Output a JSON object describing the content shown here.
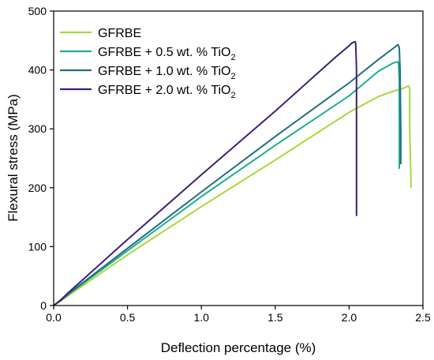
{
  "chart_data": {
    "type": "line",
    "xlabel": "Deflection percentage (%)",
    "ylabel": "Flexural stress (MPa)",
    "xlim": [
      0,
      2.5
    ],
    "ylim": [
      0,
      500
    ],
    "xticks": [
      0,
      0.5,
      1,
      1.5,
      2,
      2.5
    ],
    "xtick_labels": [
      "0.0",
      "0.5",
      "1.0",
      "1.5",
      "2.0",
      "2.5"
    ],
    "yticks": [
      0,
      100,
      200,
      300,
      400,
      500
    ],
    "ytick_labels": [
      "0",
      "100",
      "200",
      "300",
      "400",
      "500"
    ],
    "grid": false,
    "legend_position": "top-left",
    "series": [
      {
        "name": "GFRBE",
        "name_main": "GFRBE",
        "name_sub": "",
        "color": "#a6d93b",
        "x": [
          0,
          0.05,
          0.1,
          0.5,
          1.0,
          1.5,
          2.0,
          2.2,
          2.3,
          2.38,
          2.4,
          2.41,
          2.41,
          2.42
        ],
        "y": [
          0,
          8,
          17,
          86,
          168,
          247,
          328,
          355,
          364,
          370,
          373,
          370,
          300,
          200
        ]
      },
      {
        "name": "GFRBE + 0.5 wt. % TiO2",
        "name_main": "GFRBE + 0.5 wt. % TiO",
        "name_sub": "2",
        "color": "#1fae8e",
        "x": [
          0,
          0.05,
          0.1,
          0.5,
          1.0,
          1.5,
          2.0,
          2.2,
          2.3,
          2.33,
          2.335,
          2.34,
          2.34,
          2.34
        ],
        "y": [
          0,
          9,
          19,
          93,
          185,
          272,
          356,
          398,
          412,
          414,
          410,
          380,
          300,
          232
        ]
      },
      {
        "name": "GFRBE + 1.0 wt. % TiO2",
        "name_main": "GFRBE + 1.0 wt. % TiO",
        "name_sub": "2",
        "color": "#226e80",
        "x": [
          0,
          0.05,
          0.1,
          0.5,
          1.0,
          1.5,
          2.0,
          2.2,
          2.3,
          2.33,
          2.34,
          2.345,
          2.35,
          2.35
        ],
        "y": [
          0,
          9,
          20,
          97,
          193,
          287,
          378,
          418,
          437,
          443,
          438,
          400,
          300,
          240
        ]
      },
      {
        "name": "GFRBE + 2.0 wt. % TiO2",
        "name_main": "GFRBE + 2.0 wt. % TiO",
        "name_sub": "2",
        "color": "#3f1f7a",
        "x": [
          0,
          0.05,
          0.1,
          0.5,
          1.0,
          1.5,
          1.9,
          2.0,
          2.02,
          2.04,
          2.045,
          2.05,
          2.05,
          2.05
        ],
        "y": [
          0,
          10,
          22,
          112,
          222,
          330,
          420,
          441,
          446,
          448,
          445,
          400,
          300,
          152
        ]
      }
    ]
  }
}
